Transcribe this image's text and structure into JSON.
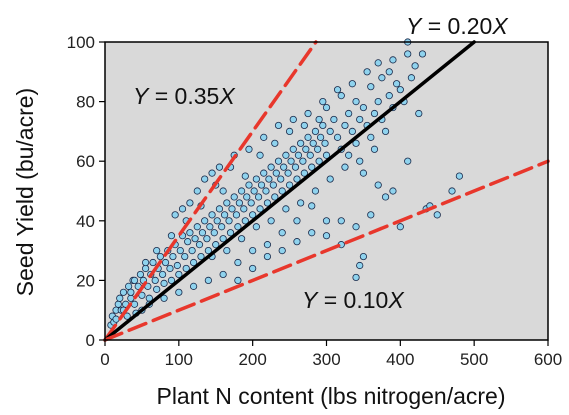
{
  "chart_data": {
    "type": "scatter",
    "title": "",
    "xlabel": "Plant N content (lbs nitrogen/acre)",
    "ylabel": "Seed Yield (bu/acre)",
    "xlim": [
      0,
      600
    ],
    "ylim": [
      0,
      100
    ],
    "xticks": [
      0,
      100,
      200,
      300,
      400,
      500,
      600
    ],
    "yticks": [
      0,
      20,
      40,
      60,
      80,
      100
    ],
    "grid": false,
    "background_color": "#d9d9d9",
    "point_color": "#8fd3ee",
    "point_edge_color": "#1a2a4a",
    "lines": [
      {
        "slope": 0.35,
        "label_var": "Y",
        "label_eq": " = 0.35",
        "label_x": "X",
        "color": "#e8372c",
        "style": "dashed"
      },
      {
        "slope": 0.2,
        "label_var": "Y",
        "label_eq": " = 0.20",
        "label_x": "X",
        "color": "#000000",
        "style": "solid"
      },
      {
        "slope": 0.1,
        "label_var": "Y",
        "label_eq": " = 0.10",
        "label_x": "X",
        "color": "#e8372c",
        "style": "dashed"
      }
    ],
    "points": [
      [
        8,
        5
      ],
      [
        10,
        8
      ],
      [
        12,
        6
      ],
      [
        15,
        10
      ],
      [
        18,
        12
      ],
      [
        20,
        14
      ],
      [
        22,
        10
      ],
      [
        25,
        16
      ],
      [
        28,
        12
      ],
      [
        30,
        8
      ],
      [
        32,
        18
      ],
      [
        35,
        14
      ],
      [
        38,
        20
      ],
      [
        40,
        12
      ],
      [
        42,
        9
      ],
      [
        45,
        18
      ],
      [
        48,
        22
      ],
      [
        50,
        15
      ],
      [
        52,
        20
      ],
      [
        55,
        24
      ],
      [
        58,
        18
      ],
      [
        60,
        14
      ],
      [
        62,
        22
      ],
      [
        65,
        26
      ],
      [
        68,
        20
      ],
      [
        70,
        17
      ],
      [
        72,
        24
      ],
      [
        75,
        28
      ],
      [
        78,
        22
      ],
      [
        80,
        19
      ],
      [
        82,
        26
      ],
      [
        85,
        30
      ],
      [
        88,
        24
      ],
      [
        90,
        20
      ],
      [
        92,
        28
      ],
      [
        95,
        32
      ],
      [
        98,
        25
      ],
      [
        100,
        22
      ],
      [
        102,
        30
      ],
      [
        105,
        35
      ],
      [
        108,
        28
      ],
      [
        110,
        24
      ],
      [
        112,
        33
      ],
      [
        115,
        36
      ],
      [
        118,
        30
      ],
      [
        120,
        26
      ],
      [
        122,
        34
      ],
      [
        125,
        38
      ],
      [
        128,
        32
      ],
      [
        130,
        28
      ],
      [
        132,
        36
      ],
      [
        135,
        40
      ],
      [
        138,
        34
      ],
      [
        140,
        30
      ],
      [
        142,
        38
      ],
      [
        145,
        42
      ],
      [
        148,
        36
      ],
      [
        150,
        32
      ],
      [
        152,
        40
      ],
      [
        155,
        44
      ],
      [
        158,
        38
      ],
      [
        160,
        34
      ],
      [
        162,
        42
      ],
      [
        165,
        46
      ],
      [
        168,
        40
      ],
      [
        170,
        36
      ],
      [
        172,
        44
      ],
      [
        175,
        48
      ],
      [
        178,
        42
      ],
      [
        180,
        38
      ],
      [
        182,
        46
      ],
      [
        185,
        50
      ],
      [
        188,
        44
      ],
      [
        190,
        40
      ],
      [
        192,
        48
      ],
      [
        195,
        52
      ],
      [
        198,
        46
      ],
      [
        200,
        42
      ],
      [
        202,
        50
      ],
      [
        205,
        54
      ],
      [
        208,
        48
      ],
      [
        210,
        44
      ],
      [
        212,
        52
      ],
      [
        215,
        56
      ],
      [
        218,
        50
      ],
      [
        220,
        46
      ],
      [
        222,
        54
      ],
      [
        225,
        58
      ],
      [
        228,
        52
      ],
      [
        230,
        48
      ],
      [
        232,
        56
      ],
      [
        235,
        60
      ],
      [
        238,
        54
      ],
      [
        240,
        50
      ],
      [
        242,
        58
      ],
      [
        245,
        62
      ],
      [
        248,
        56
      ],
      [
        250,
        52
      ],
      [
        252,
        60
      ],
      [
        255,
        64
      ],
      [
        258,
        58
      ],
      [
        260,
        54
      ],
      [
        262,
        62
      ],
      [
        265,
        66
      ],
      [
        268,
        60
      ],
      [
        270,
        56
      ],
      [
        272,
        64
      ],
      [
        275,
        68
      ],
      [
        278,
        62
      ],
      [
        280,
        58
      ],
      [
        282,
        66
      ],
      [
        285,
        70
      ],
      [
        288,
        64
      ],
      [
        290,
        60
      ],
      [
        292,
        68
      ],
      [
        295,
        72
      ],
      [
        298,
        66
      ],
      [
        300,
        62
      ],
      [
        305,
        70
      ],
      [
        310,
        74
      ],
      [
        315,
        68
      ],
      [
        320,
        64
      ],
      [
        325,
        72
      ],
      [
        330,
        76
      ],
      [
        335,
        70
      ],
      [
        340,
        66
      ],
      [
        345,
        74
      ],
      [
        350,
        78
      ],
      [
        355,
        72
      ],
      [
        360,
        68
      ],
      [
        365,
        76
      ],
      [
        370,
        80
      ],
      [
        375,
        74
      ],
      [
        380,
        70
      ],
      [
        385,
        82
      ],
      [
        390,
        78
      ],
      [
        395,
        86
      ],
      [
        400,
        84
      ],
      [
        405,
        80
      ],
      [
        410,
        100
      ],
      [
        415,
        88
      ],
      [
        420,
        92
      ],
      [
        425,
        76
      ],
      [
        430,
        96
      ],
      [
        435,
        44
      ],
      [
        440,
        45
      ],
      [
        450,
        42
      ],
      [
        470,
        50
      ],
      [
        480,
        55
      ],
      [
        400,
        38
      ],
      [
        410,
        60
      ],
      [
        390,
        50
      ],
      [
        340,
        21
      ],
      [
        345,
        25
      ],
      [
        350,
        28
      ],
      [
        320,
        32
      ],
      [
        300,
        40
      ],
      [
        280,
        45
      ],
      [
        260,
        40
      ],
      [
        240,
        36
      ],
      [
        220,
        32
      ],
      [
        200,
        30
      ],
      [
        180,
        26
      ],
      [
        160,
        22
      ],
      [
        140,
        20
      ],
      [
        120,
        18
      ],
      [
        100,
        16
      ],
      [
        80,
        14
      ],
      [
        60,
        12
      ],
      [
        50,
        10
      ],
      [
        130,
        45
      ],
      [
        150,
        52
      ],
      [
        170,
        58
      ],
      [
        190,
        55
      ],
      [
        210,
        62
      ],
      [
        230,
        66
      ],
      [
        250,
        70
      ],
      [
        270,
        72
      ],
      [
        290,
        74
      ],
      [
        160,
        50
      ],
      [
        110,
        40
      ],
      [
        90,
        35
      ],
      [
        70,
        30
      ],
      [
        55,
        26
      ],
      [
        40,
        20
      ],
      [
        35,
        16
      ],
      [
        25,
        10
      ],
      [
        15,
        7
      ],
      [
        145,
        28
      ],
      [
        165,
        30
      ],
      [
        185,
        34
      ],
      [
        205,
        38
      ],
      [
        225,
        40
      ],
      [
        245,
        44
      ],
      [
        265,
        46
      ],
      [
        285,
        50
      ],
      [
        305,
        54
      ],
      [
        325,
        58
      ],
      [
        345,
        60
      ],
      [
        365,
        64
      ],
      [
        375,
        88
      ],
      [
        385,
        90
      ],
      [
        360,
        85
      ],
      [
        340,
        80
      ],
      [
        320,
        82
      ],
      [
        300,
        78
      ],
      [
        330,
        62
      ],
      [
        350,
        56
      ],
      [
        370,
        52
      ],
      [
        380,
        48
      ],
      [
        200,
        24
      ],
      [
        180,
        20
      ],
      [
        220,
        28
      ],
      [
        240,
        30
      ],
      [
        260,
        33
      ],
      [
        280,
        36
      ],
      [
        300,
        35
      ],
      [
        320,
        40
      ],
      [
        340,
        38
      ],
      [
        360,
        42
      ],
      [
        95,
        42
      ],
      [
        105,
        44
      ],
      [
        115,
        46
      ],
      [
        125,
        50
      ],
      [
        135,
        54
      ],
      [
        145,
        56
      ],
      [
        155,
        58
      ],
      [
        175,
        62
      ],
      [
        195,
        64
      ],
      [
        215,
        68
      ],
      [
        235,
        72
      ],
      [
        255,
        74
      ],
      [
        275,
        76
      ],
      [
        295,
        80
      ],
      [
        315,
        84
      ],
      [
        335,
        86
      ],
      [
        355,
        90
      ],
      [
        370,
        93
      ],
      [
        390,
        94
      ],
      [
        410,
        96
      ]
    ]
  }
}
